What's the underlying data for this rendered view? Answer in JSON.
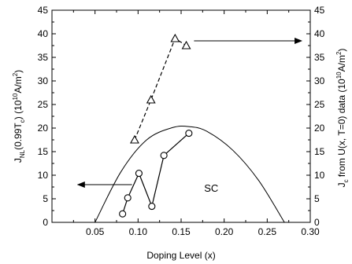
{
  "chart_data": {
    "type": "scatter",
    "xlabel": "Doping Level (x)",
    "ylabel_left": {
      "base": "J",
      "sub1": "NL",
      "mid": "(0.99T",
      "sub2": "c",
      "rest": ") (10",
      "sup1": "10",
      "tail": "A/m",
      "sup2": "2",
      "end": ")"
    },
    "ylabel_right": {
      "base": "J",
      "sub1": "c",
      "mid": " from U(x, T=0) data (10",
      "sup1": "10",
      "tail": "A/m",
      "sup2": "2",
      "end": ")"
    },
    "xlim": [
      0.0,
      0.3
    ],
    "ylim_left": [
      0,
      45
    ],
    "ylim_right": [
      0,
      45
    ],
    "x_ticks": [
      "0.05",
      "0.10",
      "0.15",
      "0.20",
      "0.25",
      "0.30"
    ],
    "x_tick_values": [
      0.05,
      0.1,
      0.15,
      0.2,
      0.25,
      0.3
    ],
    "y_ticks": [
      "0",
      "5",
      "10",
      "15",
      "20",
      "25",
      "30",
      "35",
      "40",
      "45"
    ],
    "y_tick_values": [
      0,
      5,
      10,
      15,
      20,
      25,
      30,
      35,
      40,
      45
    ],
    "series": [
      {
        "marker": "circle",
        "line": "solid",
        "axis": "left",
        "x": [
          0.082,
          0.088,
          0.101,
          0.116,
          0.13,
          0.159
        ],
        "y": [
          1.8,
          5.2,
          10.4,
          3.4,
          14.2,
          18.9
        ]
      },
      {
        "marker": "triangle",
        "line": "dashed",
        "axis": "right",
        "x": [
          0.096,
          0.115,
          0.143,
          0.156
        ],
        "y": [
          17.5,
          26.0,
          39.0,
          37.5
        ]
      },
      {
        "line": "solid",
        "curve": "dome",
        "axis": "left",
        "x": [
          0.05,
          0.08,
          0.11,
          0.14,
          0.16,
          0.18,
          0.21,
          0.24,
          0.27
        ],
        "y": [
          0.0,
          10.7,
          17.5,
          20.1,
          20.3,
          19.3,
          15.3,
          8.9,
          0.0
        ]
      }
    ],
    "annotations": [
      {
        "text": "SC",
        "x": 0.185,
        "y": 6.5
      },
      {
        "text": "",
        "arrow": "left",
        "from": [
          0.093,
          8.0
        ],
        "to": [
          0.03,
          8.0
        ]
      },
      {
        "text": "",
        "arrow": "right",
        "from": [
          0.165,
          38.5
        ],
        "to": [
          0.29,
          38.5
        ]
      }
    ],
    "grid": false
  }
}
